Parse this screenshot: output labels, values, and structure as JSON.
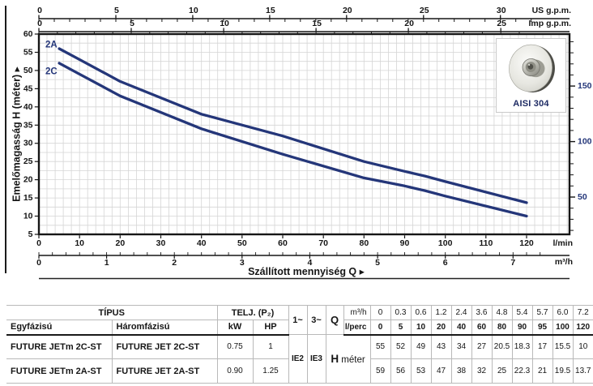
{
  "chart": {
    "ylabel": "Emelőmagasság H (méter)",
    "xlabel": "Szállított mennyiség Q",
    "arrow": "▸",
    "y_ticks": [
      60,
      55,
      50,
      45,
      40,
      35,
      30,
      25,
      20,
      15,
      10,
      5
    ],
    "us_axis": {
      "label": "US g.p.m.",
      "ticks": [
        0,
        5,
        10,
        15,
        20,
        25,
        30
      ],
      "lpm_per_unit": 3.7854
    },
    "imp_axis": {
      "label": "Imp g.p.m.",
      "ticks": [
        0,
        5,
        10,
        15,
        20,
        25
      ],
      "lpm_per_unit": 4.5461
    },
    "lmin_axis": {
      "label": "l/min",
      "ticks": [
        0,
        10,
        20,
        30,
        40,
        50,
        60,
        70,
        80,
        90,
        100,
        110,
        120
      ]
    },
    "m3h_axis": {
      "label": "m³/h",
      "ticks": [
        0,
        1,
        2,
        3,
        4,
        5,
        6,
        7
      ],
      "lpm_per_unit": 16.6667
    },
    "right_axis": {
      "tick_labels": [
        50,
        100,
        150
      ]
    },
    "aisi_label": "AISI 304",
    "colors": {
      "curve": "#243679",
      "grid": "#d5d5d5",
      "axis": "#161616",
      "right_tick_text": "#243679"
    }
  },
  "chart_data": {
    "type": "line",
    "title": "",
    "xlabel": "Szállított mennyiség Q",
    "ylabel": "Emelőmagasság H (méter)",
    "x_lpm": [
      0,
      5,
      10,
      20,
      40,
      60,
      80,
      90,
      95,
      100,
      120
    ],
    "x_m3h": [
      0,
      0.3,
      0.6,
      1.2,
      2.4,
      3.6,
      4.8,
      5.4,
      5.7,
      6.0,
      7.2
    ],
    "series": [
      {
        "name": "2A",
        "values_h_m": [
          59,
          56,
          53,
          47,
          38,
          32,
          25,
          22.3,
          21,
          19.5,
          13.7
        ]
      },
      {
        "name": "2C",
        "values_h_m": [
          55,
          52,
          49,
          43,
          34,
          27,
          20.5,
          18.3,
          17,
          15.5,
          10
        ]
      }
    ],
    "ylim_m": [
      5,
      60
    ],
    "xlim_lpm": [
      0,
      130
    ],
    "grid": true,
    "curve_draw_range_lpm": [
      5,
      120
    ],
    "legend_position": "curve-start-labels"
  },
  "table": {
    "tipus_header": "TÍPUS",
    "telj_header": "TELJ. (P₂)",
    "col_egyfazisu": "Egyfázisú",
    "col_haromfazisu": "Háromfázisú",
    "col_kw": "kW",
    "col_hp": "HP",
    "phase1": "1~",
    "phase3": "3~",
    "q_label": "Q",
    "m3h_label": "m³/h",
    "lperc_label": "l/perc",
    "h_label": "H",
    "meter_label": "méter",
    "ie_labels": [
      "IE2",
      "IE3"
    ],
    "q_m3h_values": [
      "0",
      "0.3",
      "0.6",
      "1.2",
      "2.4",
      "3.6",
      "4.8",
      "5.4",
      "5.7",
      "6.0",
      "7.2"
    ],
    "q_lperc_values": [
      "0",
      "5",
      "10",
      "20",
      "40",
      "60",
      "80",
      "90",
      "95",
      "100",
      "120"
    ],
    "rows": [
      {
        "single_phase": "FUTURE JETm 2C-ST",
        "three_phase": "FUTURE JET 2C-ST",
        "kw": "0.75",
        "hp": "1",
        "h_values": [
          "55",
          "52",
          "49",
          "43",
          "34",
          "27",
          "20.5",
          "18.3",
          "17",
          "15.5",
          "10"
        ]
      },
      {
        "single_phase": "FUTURE JETm 2A-ST",
        "three_phase": "FUTURE JET 2A-ST",
        "kw": "0.90",
        "hp": "1.25",
        "h_values": [
          "59",
          "56",
          "53",
          "47",
          "38",
          "32",
          "25",
          "22.3",
          "21",
          "19.5",
          "13.7"
        ]
      }
    ]
  }
}
